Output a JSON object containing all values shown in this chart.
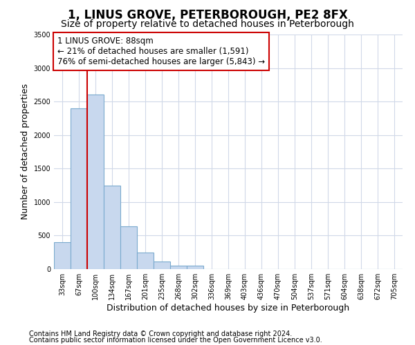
{
  "title": "1, LINUS GROVE, PETERBOROUGH, PE2 8FX",
  "subtitle": "Size of property relative to detached houses in Peterborough",
  "xlabel": "Distribution of detached houses by size in Peterborough",
  "ylabel": "Number of detached properties",
  "categories": [
    "33sqm",
    "67sqm",
    "100sqm",
    "134sqm",
    "167sqm",
    "201sqm",
    "235sqm",
    "268sqm",
    "302sqm",
    "336sqm",
    "369sqm",
    "403sqm",
    "436sqm",
    "470sqm",
    "504sqm",
    "537sqm",
    "571sqm",
    "604sqm",
    "638sqm",
    "672sqm",
    "705sqm"
  ],
  "values": [
    400,
    2400,
    2600,
    1250,
    640,
    250,
    110,
    50,
    50,
    0,
    0,
    0,
    0,
    0,
    0,
    0,
    0,
    0,
    0,
    0,
    0
  ],
  "bar_color": "#c8d8ee",
  "bar_edge_color": "#7aaace",
  "marker_line_color": "#cc0000",
  "annotation_text_line1": "1 LINUS GROVE: 88sqm",
  "annotation_text_line2": "← 21% of detached houses are smaller (1,591)",
  "annotation_text_line3": "76% of semi-detached houses are larger (5,843) →",
  "annotation_box_color": "#ffffff",
  "annotation_box_edge_color": "#cc0000",
  "ylim": [
    0,
    3500
  ],
  "yticks": [
    0,
    500,
    1000,
    1500,
    2000,
    2500,
    3000,
    3500
  ],
  "footer_line1": "Contains HM Land Registry data © Crown copyright and database right 2024.",
  "footer_line2": "Contains public sector information licensed under the Open Government Licence v3.0.",
  "bg_color": "#ffffff",
  "grid_color": "#d0d8e8",
  "title_fontsize": 12,
  "subtitle_fontsize": 10,
  "label_fontsize": 9,
  "tick_fontsize": 7,
  "annotation_fontsize": 8.5,
  "footer_fontsize": 7
}
